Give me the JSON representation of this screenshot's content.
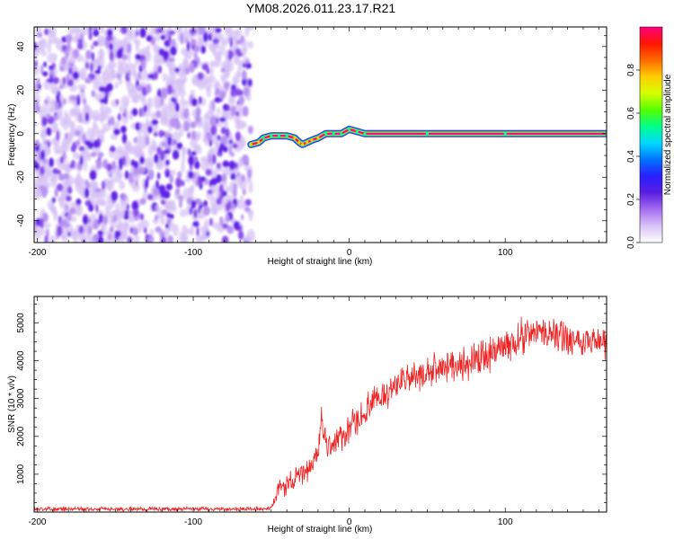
{
  "title": "YM08.2026.011.23.17.R21",
  "chart_data": [
    {
      "type": "heatmap",
      "title": "",
      "xlabel": "Height of straight line (km)",
      "ylabel": "Frequency (Hz)",
      "xlim": [
        -202,
        165
      ],
      "ylim": [
        -50,
        49
      ],
      "xticks": [
        -200,
        -100,
        0,
        100
      ],
      "yticks": [
        -40,
        -20,
        0,
        20,
        40
      ],
      "grid": false,
      "colormap": [
        "#ffffff",
        "#d9c2f7",
        "#a46cf0",
        "#5a1fe0",
        "#2a1fff",
        "#0073ff",
        "#00d9ff",
        "#00ff8c",
        "#55ff00",
        "#d4ff00",
        "#ffcc00",
        "#ff6a00",
        "#ff1500",
        "#ff0080"
      ],
      "noise_region": {
        "x_from": -202,
        "x_to": -63,
        "max_amplitude": 0.25
      },
      "ridge": {
        "x": [
          -63,
          -58,
          -55,
          -50,
          -45,
          -40,
          -35,
          -32,
          -30,
          -27,
          -24,
          -20,
          -15,
          -10,
          -5,
          0,
          5,
          10,
          50,
          100,
          165
        ],
        "freq_hz": [
          -5,
          -4,
          -2,
          -1,
          -1,
          -1,
          -2,
          -4,
          -5,
          -4,
          -3,
          -2,
          0,
          0,
          0,
          2,
          1,
          0,
          0,
          0,
          0
        ],
        "amplitude": [
          0.6,
          0.8,
          0.9,
          0.9,
          0.9,
          0.9,
          0.8,
          0.7,
          0.6,
          0.7,
          0.8,
          0.8,
          0.9,
          0.9,
          0.9,
          1.0,
          1.0,
          1.0,
          1.0,
          1.0,
          1.0
        ]
      },
      "colorbar": {
        "label": "Normalized spectral amplitude",
        "range": [
          0,
          1
        ],
        "ticks": [
          0.0,
          0.2,
          0.4,
          0.6,
          0.8
        ]
      }
    },
    {
      "type": "line",
      "title": "",
      "xlabel": "Height of straight line (km)",
      "ylabel": "SNR (10 * v/v)",
      "xlim": [
        -202,
        165
      ],
      "ylim": [
        0,
        5700
      ],
      "xticks": [
        -200,
        -100,
        0,
        100
      ],
      "yticks": [
        1000,
        2000,
        3000,
        4000,
        5000
      ],
      "grid": false,
      "series": [
        {
          "color": "#ee2222",
          "x": [
            -202,
            -150,
            -100,
            -60,
            -50,
            -45,
            -40,
            -35,
            -30,
            -25,
            -20,
            -18,
            -15,
            -10,
            -5,
            0,
            10,
            20,
            30,
            40,
            50,
            60,
            70,
            80,
            90,
            100,
            110,
            120,
            130,
            140,
            150,
            160,
            165
          ],
          "values": [
            80,
            80,
            80,
            80,
            90,
            600,
            750,
            850,
            1000,
            1200,
            1550,
            2500,
            1750,
            1850,
            1950,
            2150,
            2650,
            3050,
            3350,
            3550,
            3650,
            3850,
            3900,
            4000,
            4200,
            4350,
            4650,
            4750,
            4700,
            4600,
            4550,
            4500,
            4400
          ],
          "noise_amplitude": [
            70,
            70,
            70,
            70,
            70,
            350,
            350,
            350,
            400,
            400,
            400,
            500,
            450,
            450,
            450,
            500,
            500,
            500,
            500,
            500,
            500,
            500,
            550,
            550,
            550,
            550,
            600,
            550,
            500,
            500,
            500,
            500,
            500
          ]
        }
      ]
    }
  ]
}
